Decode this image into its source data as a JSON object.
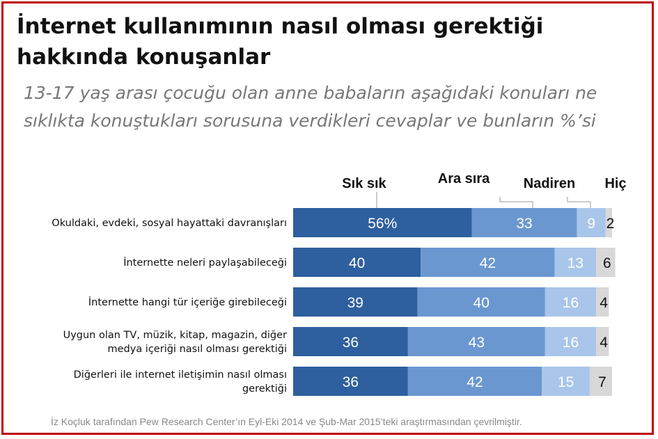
{
  "header": {
    "title": "İnternet kullanımının nasıl olması gerektiği hakkında konuşanlar",
    "subtitle": "13-17 yaş arası çocuğu olan anne babaların aşağıdaki konuları ne sıklıkta konuştukları sorusuna verdikleri cevaplar ve bunların %’si"
  },
  "footnote": "İz Koçluk tarafından Pew Research Center’ın Eyl-Eki 2014 ve Şub-Mar 2015’teki araştırmasından çevrilmiştir.",
  "colors": {
    "frame": "#c00000",
    "series": [
      "#2e5f9e",
      "#6b97d1",
      "#a9c6ea",
      "#d8d8d8"
    ],
    "value_text": [
      "#ffffff",
      "#ffffff",
      "#ffffff",
      "#111111"
    ]
  },
  "chart_data": {
    "type": "bar",
    "orientation": "horizontal",
    "stacked": true,
    "categories": [
      [
        "Okuldaki, evdeki, sosyal hayattaki davranışları"
      ],
      [
        "İnternette neleri paylaşabileceği"
      ],
      [
        "İnternette hangi tür içeriğe girebileceği"
      ],
      [
        "Uygun olan TV, müzik, kitap, magazin, diğer",
        "medya içeriği nasıl olması gerektiği"
      ],
      [
        "Diğerleri ile internet iletişimin nasıl olması",
        "gerektiği"
      ]
    ],
    "series": [
      {
        "name": "Sık sık",
        "values": [
          56,
          40,
          39,
          36,
          36
        ],
        "labels": [
          "56%",
          "40",
          "39",
          "36",
          "36"
        ]
      },
      {
        "name": "Ara sıra",
        "values": [
          33,
          42,
          40,
          43,
          42
        ],
        "labels": [
          "33",
          "42",
          "40",
          "43",
          "42"
        ]
      },
      {
        "name": "Nadiren",
        "values": [
          9,
          13,
          16,
          16,
          15
        ],
        "labels": [
          "9",
          "13",
          "16",
          "16",
          "15"
        ]
      },
      {
        "name": "Hiç",
        "values": [
          2,
          6,
          4,
          4,
          7
        ],
        "labels": [
          "2",
          "6",
          "4",
          "4",
          "7"
        ]
      }
    ],
    "xlim": [
      0,
      100
    ],
    "legend": "top, above first bar",
    "grid": false
  }
}
